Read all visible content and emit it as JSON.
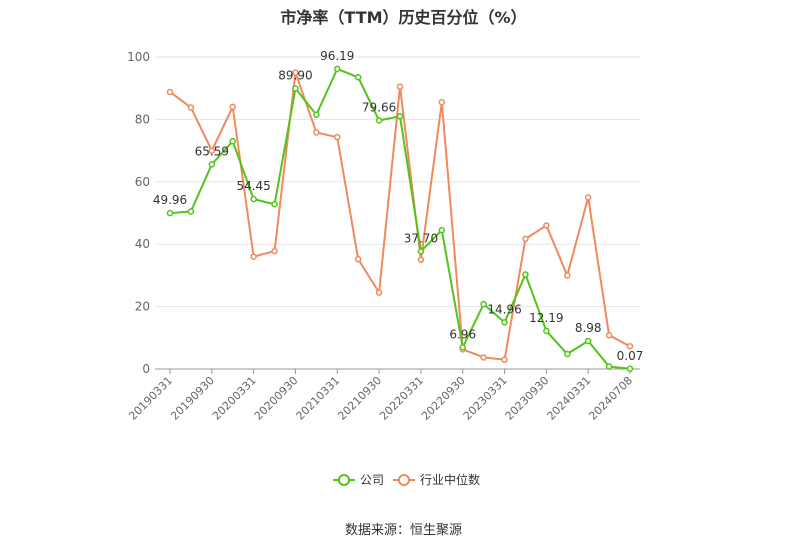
{
  "chart_data": {
    "type": "line",
    "title": "市净率（TTM）历史百分位（%）",
    "source": "数据来源：恒生聚源",
    "ylim": [
      0,
      100
    ],
    "yticks": [
      0,
      20,
      40,
      60,
      80,
      100
    ],
    "grid": true,
    "legend_position": "bottom",
    "x": [
      "20190331",
      "20190630",
      "20190930",
      "20191231",
      "20200331",
      "20200630",
      "20200930",
      "20201231",
      "20210331",
      "20210630",
      "20210930",
      "20211231",
      "20220331",
      "20220630",
      "20220930",
      "20221231",
      "20230331",
      "20230630",
      "20230930",
      "20231231",
      "20240331",
      "20240630",
      "20240708"
    ],
    "x_tick_labels": [
      "20190331",
      "20190930",
      "20200331",
      "20200930",
      "20210331",
      "20210930",
      "20220331",
      "20220930",
      "20230331",
      "20230930",
      "20240331",
      "20240708"
    ],
    "series": [
      {
        "name": "公司",
        "color": "#52c41a",
        "values": [
          49.96,
          50.5,
          65.59,
          73.0,
          54.45,
          52.8,
          89.9,
          81.5,
          96.19,
          93.5,
          79.66,
          81.0,
          37.7,
          44.5,
          6.96,
          20.8,
          14.96,
          30.3,
          12.19,
          4.8,
          8.98,
          0.8,
          0.07
        ]
      },
      {
        "name": "行业中位数",
        "color": "#f08a5d",
        "values": [
          88.8,
          83.8,
          70.0,
          84.0,
          36.0,
          37.8,
          95.0,
          75.8,
          74.3,
          35.2,
          24.5,
          90.5,
          35.0,
          85.5,
          6.3,
          3.7,
          3.0,
          41.7,
          46.0,
          30.0,
          55.0,
          10.8,
          7.3
        ]
      }
    ],
    "data_labels": [
      {
        "index": 0,
        "text": "49.96"
      },
      {
        "index": 2,
        "text": "65.59"
      },
      {
        "index": 4,
        "text": "54.45"
      },
      {
        "index": 6,
        "text": "89.90"
      },
      {
        "index": 8,
        "text": "96.19"
      },
      {
        "index": 10,
        "text": "79.66"
      },
      {
        "index": 12,
        "text": "37.70"
      },
      {
        "index": 14,
        "text": "6.96"
      },
      {
        "index": 16,
        "text": "14.96"
      },
      {
        "index": 18,
        "text": "12.19"
      },
      {
        "index": 20,
        "text": "8.98"
      },
      {
        "index": 22,
        "text": "0.07"
      }
    ]
  }
}
